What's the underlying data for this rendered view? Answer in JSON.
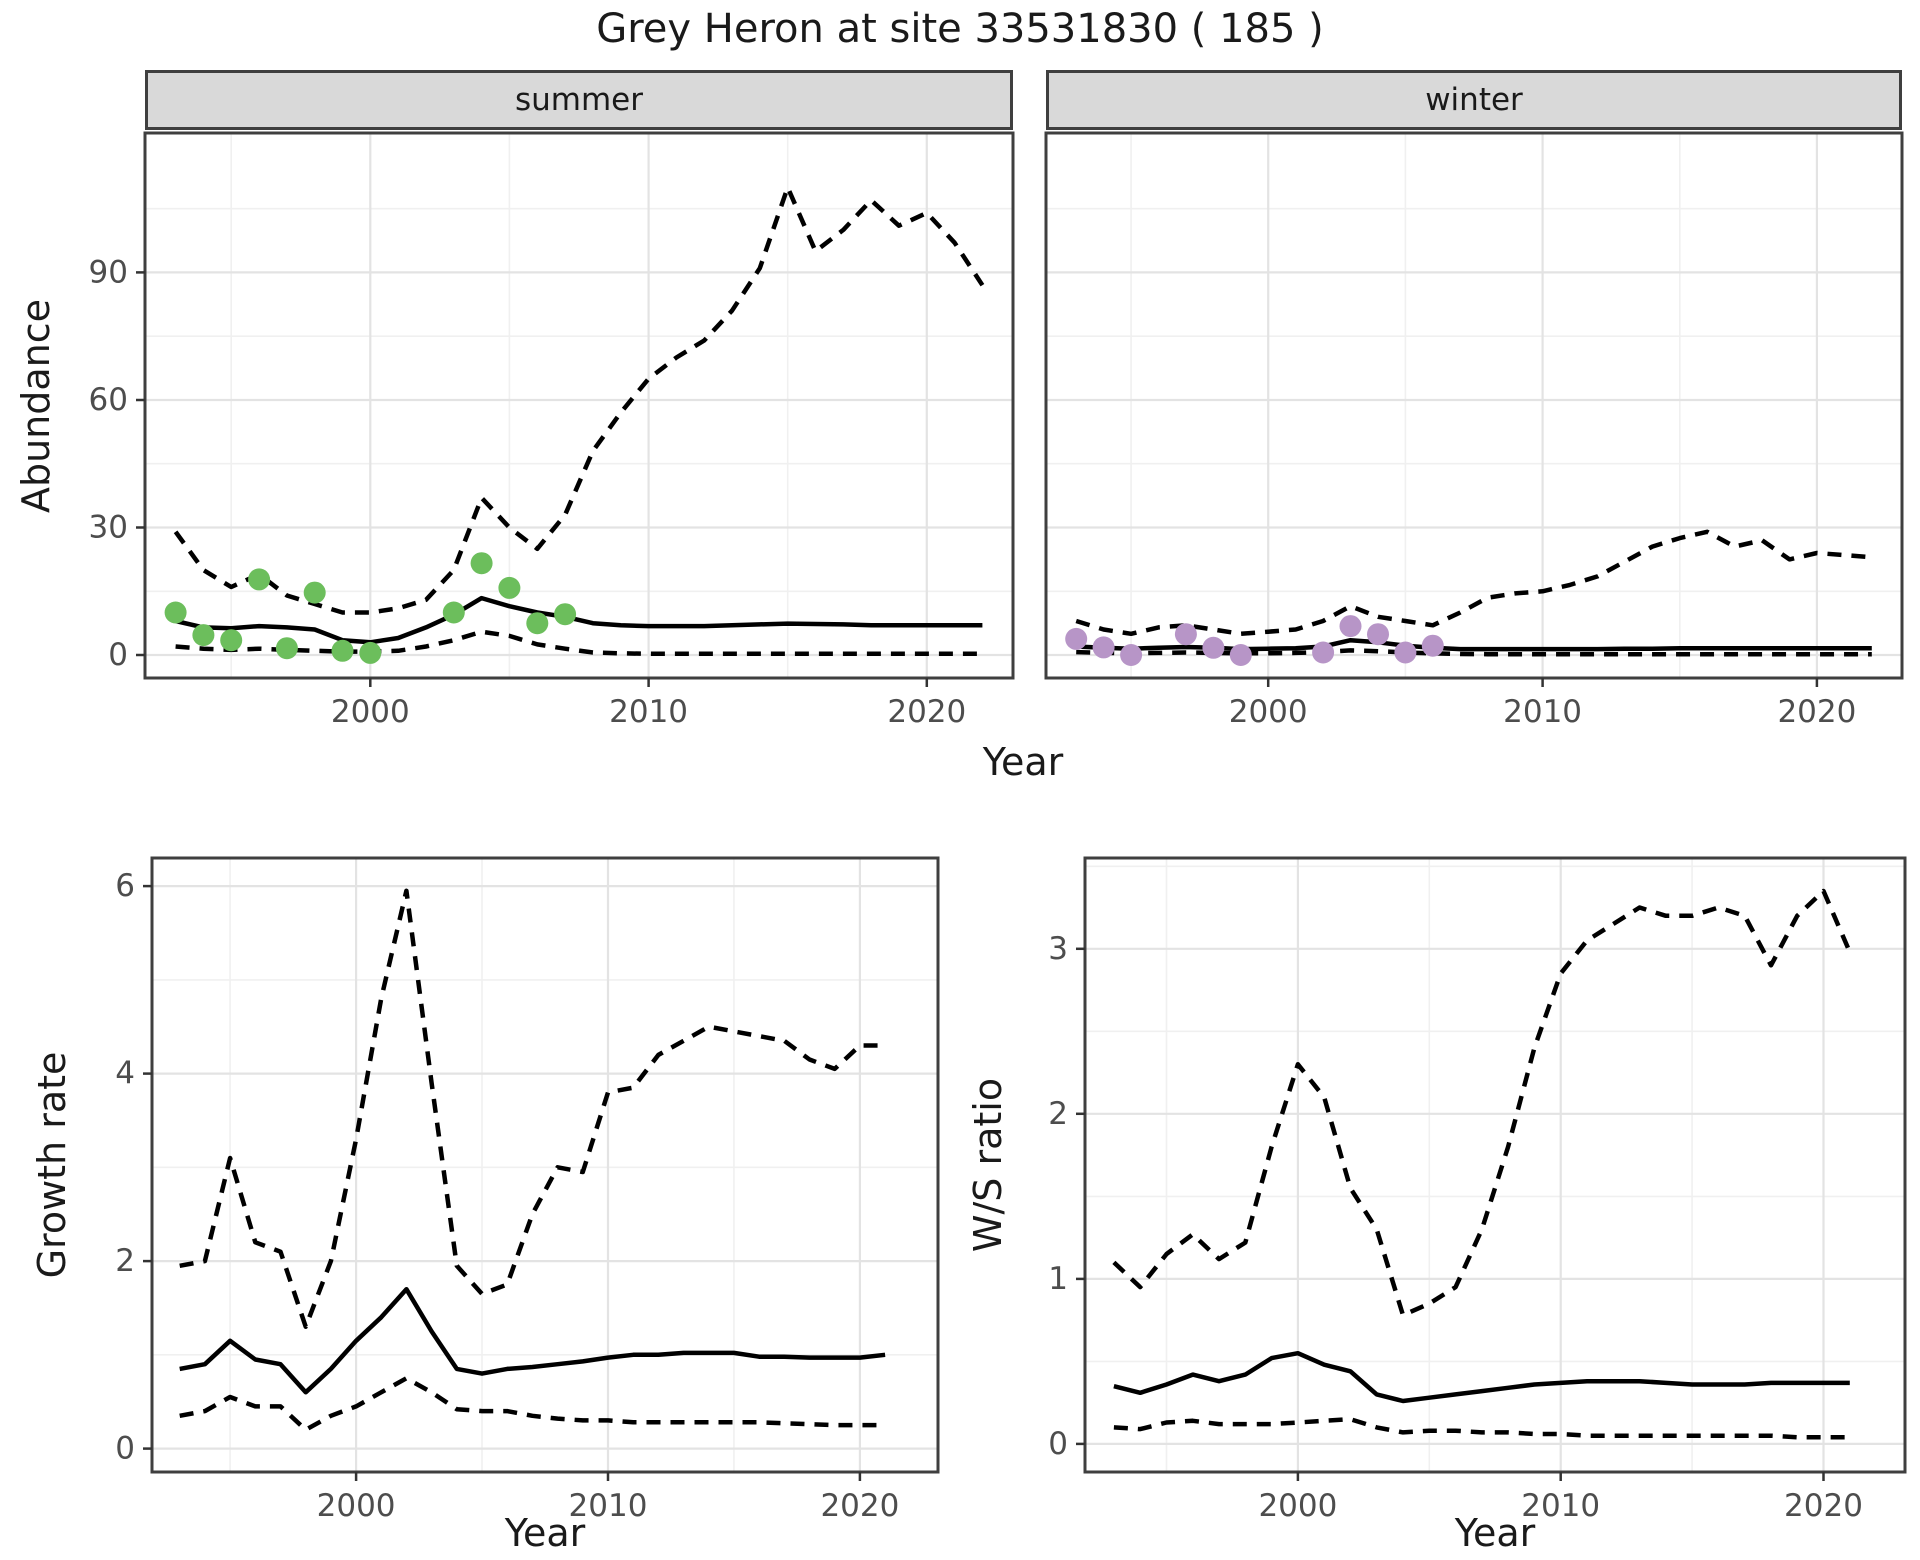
{
  "title": "Grey Heron at site 33531830 ( 185 )",
  "colors": {
    "summer_points": "#6cbe5c",
    "winter_points": "#b795c7",
    "line": "#000000",
    "strip_fill": "#d9d9d9",
    "grid_major": "#e3e3e3",
    "grid_minor": "#f0f0f0",
    "panel_border": "#3f3f3f",
    "tick_label": "#4d4d4d"
  },
  "chart_data_note": "Four panels: fitted median (solid) with dashed 95% credible interval bands; colored dots are observed counts.",
  "charts": [
    {
      "id": "abundance-summer",
      "type": "line",
      "strip": "summer",
      "ylabel": "Abundance",
      "xlabel": "Year",
      "x_domain": [
        1991.9,
        2023.1
      ],
      "y_domain": [
        -5.4,
        122.8
      ],
      "x_major": [
        2000,
        2010,
        2020
      ],
      "x_minor": [
        1995,
        2005,
        2015
      ],
      "y_major": [
        0,
        30,
        60,
        90
      ],
      "y_minor": [
        15,
        45,
        75,
        105
      ],
      "fit_years": [
        1993,
        1994,
        1995,
        1996,
        1997,
        1998,
        1999,
        2000,
        2001,
        2002,
        2003,
        2004,
        2005,
        2006,
        2007,
        2008,
        2009,
        2010,
        2011,
        2012,
        2013,
        2014,
        2015,
        2016,
        2017,
        2018,
        2019,
        2020,
        2021,
        2022
      ],
      "series": [
        {
          "name": "median",
          "style": "solid",
          "values": [
            8,
            6.5,
            6.3,
            6.8,
            6.5,
            6,
            3.5,
            3,
            4,
            6.5,
            9.5,
            13.4,
            11.5,
            10,
            9,
            7.5,
            7,
            6.8,
            6.8,
            6.8,
            7,
            7.2,
            7.4,
            7.3,
            7.2,
            7,
            7,
            7,
            7,
            7
          ]
        },
        {
          "name": "upper 95% CI",
          "style": "dashed",
          "values": [
            29,
            20,
            16,
            19,
            14,
            12,
            10,
            10,
            11,
            13,
            20,
            37,
            30,
            25,
            33,
            48,
            57,
            65,
            70,
            74,
            81,
            91,
            110,
            95,
            100,
            107,
            101,
            104,
            97,
            87
          ]
        },
        {
          "name": "lower 95% CI",
          "style": "dashed",
          "values": [
            2,
            1.5,
            1.2,
            1.5,
            1.2,
            1,
            0.8,
            0.8,
            1,
            2,
            3.5,
            5.5,
            4.5,
            2.5,
            1.5,
            0.6,
            0.4,
            0.3,
            0.3,
            0.3,
            0.3,
            0.3,
            0.3,
            0.3,
            0.3,
            0.3,
            0.3,
            0.3,
            0.3,
            0.3
          ]
        }
      ],
      "points": {
        "name": "observed summer counts",
        "color": "#6cbe5c",
        "years": [
          1993,
          1994,
          1995,
          1996,
          1997,
          1998,
          1999,
          2000,
          2003,
          2004,
          2005,
          2006,
          2007
        ],
        "values": [
          10,
          4.7,
          3.5,
          17.8,
          1.6,
          14.7,
          1,
          0.5,
          10,
          21.6,
          15.8,
          7.5,
          9.6
        ]
      }
    },
    {
      "id": "abundance-winter",
      "type": "line",
      "strip": "winter",
      "ylabel": "",
      "xlabel": "Year",
      "x_domain": [
        1991.9,
        2023.1
      ],
      "y_domain": [
        -5.4,
        122.8
      ],
      "x_major": [
        2000,
        2010,
        2020
      ],
      "x_minor": [
        1995,
        2005,
        2015
      ],
      "y_major": [
        0,
        30,
        60,
        90
      ],
      "y_minor": [
        15,
        45,
        75,
        105
      ],
      "fit_years": [
        1993,
        1994,
        1995,
        1996,
        1997,
        1998,
        1999,
        2000,
        2001,
        2002,
        2003,
        2004,
        2005,
        2006,
        2007,
        2008,
        2009,
        2010,
        2011,
        2012,
        2013,
        2014,
        2015,
        2016,
        2017,
        2018,
        2019,
        2020,
        2021,
        2022
      ],
      "series": [
        {
          "name": "median",
          "style": "solid",
          "values": [
            2,
            1.7,
            1.5,
            1.7,
            1.9,
            1.7,
            1.4,
            1.5,
            1.6,
            2,
            3.5,
            3,
            2.2,
            1.7,
            1.4,
            1.4,
            1.4,
            1.4,
            1.4,
            1.4,
            1.5,
            1.5,
            1.6,
            1.6,
            1.6,
            1.6,
            1.6,
            1.6,
            1.6,
            1.6
          ]
        },
        {
          "name": "upper 95% CI",
          "style": "dashed",
          "values": [
            8,
            6,
            5,
            6.5,
            7,
            6,
            5,
            5.5,
            6,
            8,
            11.5,
            9,
            8,
            7,
            10,
            13.5,
            14.5,
            15,
            16.5,
            18.5,
            22,
            25.5,
            27.5,
            29,
            25.5,
            27,
            22.5,
            24,
            23.5,
            23
          ]
        },
        {
          "name": "lower 95% CI",
          "style": "dashed",
          "values": [
            0.7,
            0.5,
            0.4,
            0.5,
            0.6,
            0.5,
            0.4,
            0.4,
            0.5,
            0.7,
            1.1,
            0.9,
            0.6,
            0.4,
            0.25,
            0.2,
            0.2,
            0.2,
            0.2,
            0.2,
            0.2,
            0.2,
            0.2,
            0.2,
            0.2,
            0.2,
            0.2,
            0.2,
            0.2,
            0.2
          ]
        }
      ],
      "points": {
        "name": "observed winter counts",
        "color": "#b795c7",
        "years": [
          1993,
          1994,
          1995,
          1997,
          1998,
          1999,
          2002,
          2003,
          2004,
          2005,
          2006
        ],
        "values": [
          3.8,
          1.8,
          0,
          4.9,
          1.7,
          0,
          0.6,
          6.8,
          4.9,
          0.6,
          2.2
        ]
      }
    },
    {
      "id": "growth-rate",
      "type": "line",
      "strip": "",
      "ylabel": "Growth rate",
      "xlabel": "Year",
      "x_domain": [
        1991.9,
        2023.1
      ],
      "y_domain": [
        -0.25,
        6.3
      ],
      "x_major": [
        2000,
        2010,
        2020
      ],
      "x_minor": [
        1995,
        2005,
        2015
      ],
      "y_major": [
        0,
        2,
        4,
        6
      ],
      "y_minor": [
        1,
        3,
        5
      ],
      "fit_years": [
        1993,
        1994,
        1995,
        1996,
        1997,
        1998,
        1999,
        2000,
        2001,
        2002,
        2003,
        2004,
        2005,
        2006,
        2007,
        2008,
        2009,
        2010,
        2011,
        2012,
        2013,
        2014,
        2015,
        2016,
        2017,
        2018,
        2019,
        2020,
        2021
      ],
      "series": [
        {
          "name": "median",
          "style": "solid",
          "values": [
            0.85,
            0.9,
            1.15,
            0.95,
            0.9,
            0.6,
            0.85,
            1.15,
            1.4,
            1.7,
            1.25,
            0.85,
            0.8,
            0.85,
            0.87,
            0.9,
            0.93,
            0.97,
            1,
            1,
            1.02,
            1.02,
            1.02,
            0.98,
            0.98,
            0.97,
            0.97,
            0.97,
            1
          ]
        },
        {
          "name": "upper 95% CI",
          "style": "dashed",
          "values": [
            1.95,
            2,
            3.1,
            2.2,
            2.1,
            1.3,
            2,
            3.3,
            4.8,
            5.95,
            3.9,
            1.95,
            1.65,
            1.75,
            2.5,
            3,
            2.95,
            3.8,
            3.85,
            4.2,
            4.35,
            4.5,
            4.45,
            4.4,
            4.35,
            4.15,
            4.05,
            4.3,
            4.3
          ]
        },
        {
          "name": "lower 95% CI",
          "style": "dashed",
          "values": [
            0.35,
            0.4,
            0.55,
            0.45,
            0.45,
            0.2,
            0.35,
            0.45,
            0.6,
            0.75,
            0.6,
            0.42,
            0.4,
            0.4,
            0.35,
            0.32,
            0.3,
            0.3,
            0.28,
            0.28,
            0.28,
            0.28,
            0.28,
            0.28,
            0.27,
            0.26,
            0.25,
            0.25,
            0.25
          ]
        }
      ],
      "points": null
    },
    {
      "id": "ws-ratio",
      "type": "line",
      "strip": "",
      "ylabel": "W/S ratio",
      "xlabel": "Year",
      "x_domain": [
        1991.9,
        2023.1
      ],
      "y_domain": [
        -0.17,
        3.55
      ],
      "x_major": [
        2000,
        2010,
        2020
      ],
      "x_minor": [
        1995,
        2005,
        2015
      ],
      "y_major": [
        0,
        1,
        2,
        3
      ],
      "y_minor": [
        0.5,
        1.5,
        2.5,
        3.5
      ],
      "fit_years": [
        1993,
        1994,
        1995,
        1996,
        1997,
        1998,
        1999,
        2000,
        2001,
        2002,
        2003,
        2004,
        2005,
        2006,
        2007,
        2008,
        2009,
        2010,
        2011,
        2012,
        2013,
        2014,
        2015,
        2016,
        2017,
        2018,
        2019,
        2020,
        2021
      ],
      "series": [
        {
          "name": "median",
          "style": "solid",
          "values": [
            0.35,
            0.31,
            0.36,
            0.42,
            0.38,
            0.42,
            0.52,
            0.55,
            0.48,
            0.44,
            0.3,
            0.26,
            0.28,
            0.3,
            0.32,
            0.34,
            0.36,
            0.37,
            0.38,
            0.38,
            0.38,
            0.37,
            0.36,
            0.36,
            0.36,
            0.37,
            0.37,
            0.37,
            0.37
          ]
        },
        {
          "name": "upper 95% CI",
          "style": "dashed",
          "values": [
            1.1,
            0.95,
            1.15,
            1.27,
            1.12,
            1.22,
            1.8,
            2.3,
            2.1,
            1.55,
            1.3,
            0.78,
            0.85,
            0.95,
            1.3,
            1.8,
            2.4,
            2.85,
            3.05,
            3.15,
            3.25,
            3.2,
            3.2,
            3.25,
            3.2,
            2.9,
            3.2,
            3.35,
            2.98
          ]
        },
        {
          "name": "lower 95% CI",
          "style": "dashed",
          "values": [
            0.1,
            0.09,
            0.13,
            0.14,
            0.12,
            0.12,
            0.12,
            0.13,
            0.14,
            0.15,
            0.1,
            0.07,
            0.08,
            0.08,
            0.07,
            0.07,
            0.06,
            0.06,
            0.05,
            0.05,
            0.05,
            0.05,
            0.05,
            0.05,
            0.05,
            0.05,
            0.04,
            0.04,
            0.04
          ]
        }
      ],
      "points": null
    }
  ]
}
